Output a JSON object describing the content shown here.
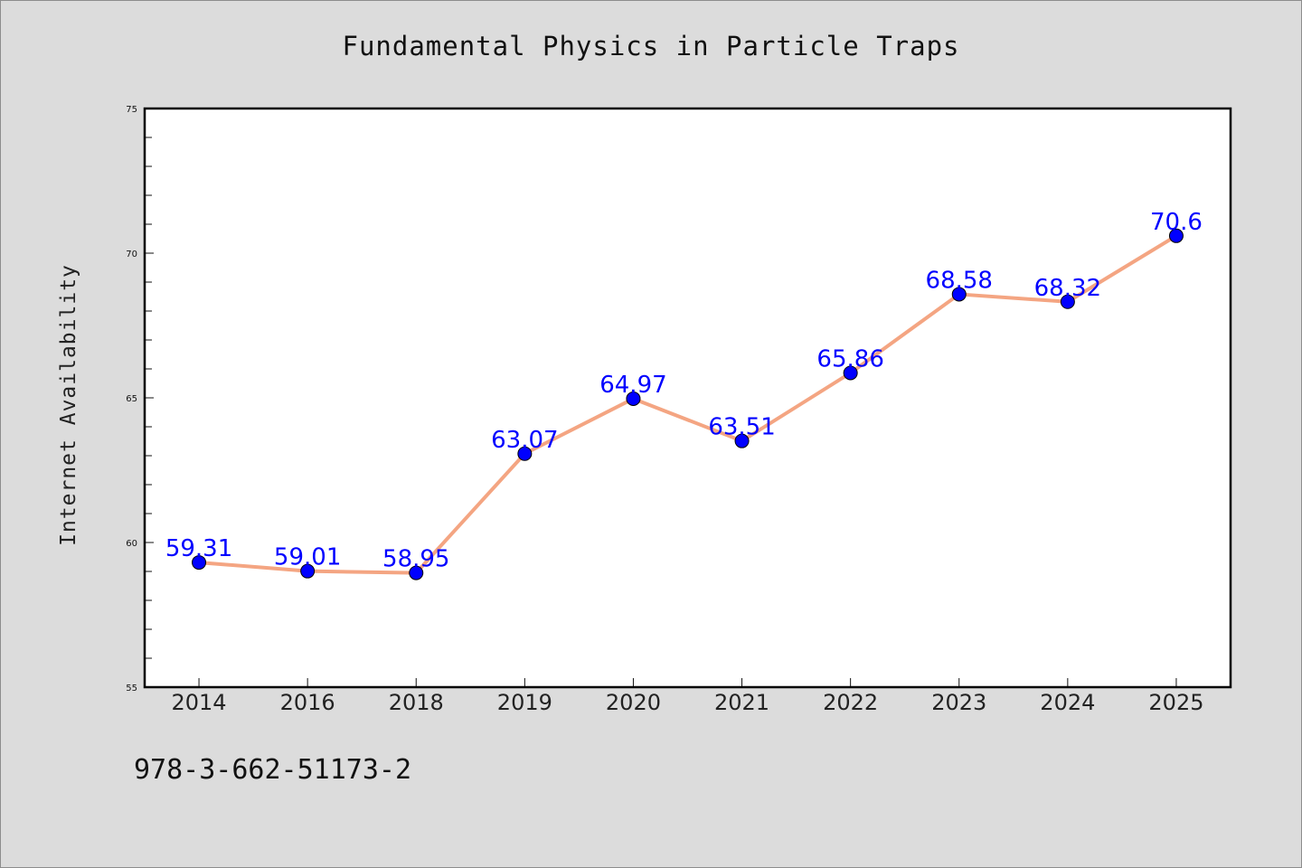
{
  "chart_data": {
    "type": "line",
    "title": "Fundamental Physics in Particle Traps",
    "xlabel": "",
    "ylabel": "Internet Availability",
    "categories": [
      "2014",
      "2016",
      "2018",
      "2019",
      "2020",
      "2021",
      "2022",
      "2023",
      "2024",
      "2025"
    ],
    "series": [
      {
        "values": [
          59.31,
          59.01,
          58.95,
          63.07,
          64.97,
          63.51,
          65.86,
          68.58,
          68.32,
          70.6
        ],
        "data_labels": [
          "59.31",
          "59.01",
          "58.95",
          "63.07",
          "64.97",
          "63.51",
          "65.86",
          "68.58",
          "68.32",
          "70.6"
        ]
      }
    ],
    "ylim": [
      55,
      75
    ],
    "yticks": [
      55,
      60,
      65,
      70,
      75
    ],
    "grid": false,
    "legend": "none",
    "colors": {
      "line": "#f4a582",
      "marker": "#0000ff",
      "data_label": "#0000ff",
      "plot_background": "#ffffff",
      "figure_background": "#dcdcdc"
    }
  },
  "footnote": "978-3-662-51173-2"
}
